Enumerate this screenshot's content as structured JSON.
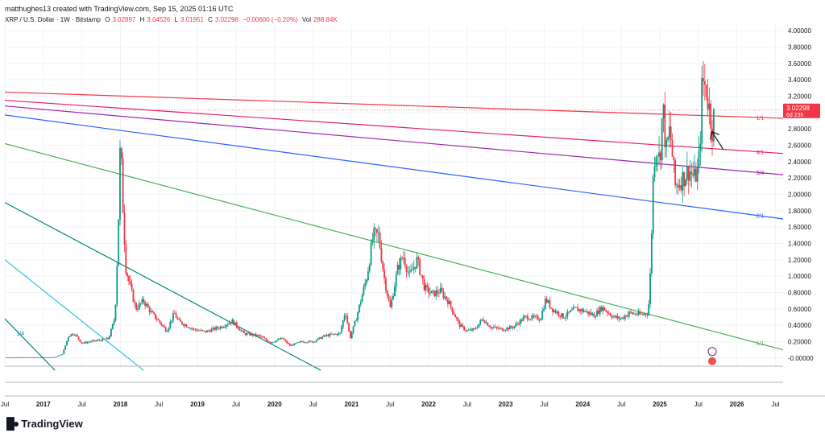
{
  "header": {
    "credit": "matthughes13 created with TradingView.com, Sep 15, 2025 01:16 UTC"
  },
  "legend": {
    "symbol": "XRP / U.S. Dollar · 1W · Bitstamp",
    "open_key": "O",
    "open": "3.02897",
    "high_key": "H",
    "high": "3.04526",
    "low_key": "L",
    "low": "3.01951",
    "close_key": "C",
    "close": "3.02298",
    "change": "−0.00600 (−0.20%)",
    "vol_key": "Vol",
    "vol": "288.84K"
  },
  "price_badge": {
    "price": "3.02298",
    "countdown": "6d 23h"
  },
  "branding": {
    "logo_text": "TradingView"
  },
  "colors": {
    "up": "#089981",
    "down": "#f23645",
    "red_line": "#f23645",
    "pink_line": "#e91e63",
    "purple_line": "#9c27b0",
    "blue_line": "#2962ff",
    "green_line": "#4caf50",
    "teal_line": "#00897b",
    "cyan_line": "#26c6da",
    "grid": "#f0f3fa",
    "axis_text": "#131722"
  },
  "chart_data": {
    "type": "candlestick",
    "title": "XRP / U.S. Dollar · 1W · Bitstamp",
    "y_ticks": [
      "4.00000",
      "3.80000",
      "3.60000",
      "3.40000",
      "3.20000",
      "3.00000",
      "2.80000",
      "2.60000",
      "2.40000",
      "2.20000",
      "2.00000",
      "1.80000",
      "1.60000",
      "1.40000",
      "1.20000",
      "1.00000",
      "0.80000",
      "0.60000",
      "0.40000",
      "0.20000",
      "-0.00000"
    ],
    "y_tick_values": [
      4.0,
      3.8,
      3.6,
      3.4,
      3.2,
      3.0,
      2.8,
      2.6,
      2.4,
      2.2,
      2.0,
      1.8,
      1.6,
      1.4,
      1.2,
      1.0,
      0.8,
      0.6,
      0.4,
      0.2,
      0.0
    ],
    "ylim": [
      -0.1,
      4.1
    ],
    "x_ticks": [
      {
        "label": "Jul",
        "t": 2016.5
      },
      {
        "label": "2017",
        "t": 2017.0
      },
      {
        "label": "Jul",
        "t": 2017.5
      },
      {
        "label": "2018",
        "t": 2018.0
      },
      {
        "label": "Jul",
        "t": 2018.5
      },
      {
        "label": "2019",
        "t": 2019.0
      },
      {
        "label": "Jul",
        "t": 2019.5
      },
      {
        "label": "2020",
        "t": 2020.0
      },
      {
        "label": "Jul",
        "t": 2020.5
      },
      {
        "label": "2021",
        "t": 2021.0
      },
      {
        "label": "Jul",
        "t": 2021.5
      },
      {
        "label": "2022",
        "t": 2022.0
      },
      {
        "label": "Jul",
        "t": 2022.5
      },
      {
        "label": "2023",
        "t": 2023.0
      },
      {
        "label": "Jul",
        "t": 2023.5
      },
      {
        "label": "2024",
        "t": 2024.0
      },
      {
        "label": "Jul",
        "t": 2024.5
      },
      {
        "label": "2025",
        "t": 2025.0
      },
      {
        "label": "Jul",
        "t": 2025.5
      },
      {
        "label": "2026",
        "t": 2026.0
      },
      {
        "label": "Jul",
        "t": 2026.5
      }
    ],
    "xlim": [
      2016.5,
      2026.6
    ],
    "close_path": [
      [
        2016.5,
        0.006
      ],
      [
        2016.9,
        0.007
      ],
      [
        2017.15,
        0.01
      ],
      [
        2017.25,
        0.05
      ],
      [
        2017.33,
        0.28
      ],
      [
        2017.4,
        0.3
      ],
      [
        2017.5,
        0.18
      ],
      [
        2017.6,
        0.2
      ],
      [
        2017.75,
        0.22
      ],
      [
        2017.85,
        0.24
      ],
      [
        2017.93,
        0.5
      ],
      [
        2017.97,
        1.5
      ],
      [
        2018.0,
        2.7
      ],
      [
        2018.03,
        1.9
      ],
      [
        2018.07,
        1.1
      ],
      [
        2018.12,
        0.9
      ],
      [
        2018.2,
        0.6
      ],
      [
        2018.3,
        0.7
      ],
      [
        2018.4,
        0.55
      ],
      [
        2018.5,
        0.45
      ],
      [
        2018.6,
        0.33
      ],
      [
        2018.7,
        0.55
      ],
      [
        2018.75,
        0.45
      ],
      [
        2018.85,
        0.4
      ],
      [
        2018.95,
        0.35
      ],
      [
        2019.1,
        0.32
      ],
      [
        2019.3,
        0.38
      ],
      [
        2019.45,
        0.45
      ],
      [
        2019.6,
        0.3
      ],
      [
        2019.8,
        0.27
      ],
      [
        2019.95,
        0.19
      ],
      [
        2020.1,
        0.24
      ],
      [
        2020.2,
        0.15
      ],
      [
        2020.35,
        0.2
      ],
      [
        2020.5,
        0.2
      ],
      [
        2020.65,
        0.27
      ],
      [
        2020.85,
        0.3
      ],
      [
        2020.92,
        0.58
      ],
      [
        2020.98,
        0.24
      ],
      [
        2021.05,
        0.45
      ],
      [
        2021.2,
        1.0
      ],
      [
        2021.28,
        1.5
      ],
      [
        2021.35,
        1.5
      ],
      [
        2021.42,
        1.0
      ],
      [
        2021.5,
        0.6
      ],
      [
        2021.6,
        1.1
      ],
      [
        2021.67,
        1.25
      ],
      [
        2021.75,
        1.0
      ],
      [
        2021.85,
        1.2
      ],
      [
        2021.95,
        0.85
      ],
      [
        2022.05,
        0.78
      ],
      [
        2022.15,
        0.82
      ],
      [
        2022.25,
        0.7
      ],
      [
        2022.4,
        0.4
      ],
      [
        2022.5,
        0.33
      ],
      [
        2022.6,
        0.35
      ],
      [
        2022.7,
        0.48
      ],
      [
        2022.8,
        0.38
      ],
      [
        2022.95,
        0.35
      ],
      [
        2023.1,
        0.38
      ],
      [
        2023.25,
        0.5
      ],
      [
        2023.45,
        0.48
      ],
      [
        2023.52,
        0.72
      ],
      [
        2023.6,
        0.6
      ],
      [
        2023.75,
        0.5
      ],
      [
        2023.9,
        0.6
      ],
      [
        2024.0,
        0.58
      ],
      [
        2024.15,
        0.52
      ],
      [
        2024.25,
        0.62
      ],
      [
        2024.4,
        0.5
      ],
      [
        2024.5,
        0.48
      ],
      [
        2024.6,
        0.55
      ],
      [
        2024.75,
        0.53
      ],
      [
        2024.85,
        0.55
      ],
      [
        2024.88,
        1.1
      ],
      [
        2024.92,
        2.4
      ],
      [
        2024.96,
        2.6
      ],
      [
        2025.0,
        2.4
      ],
      [
        2025.04,
        3.1
      ],
      [
        2025.08,
        2.5
      ],
      [
        2025.13,
        2.8
      ],
      [
        2025.2,
        2.1
      ],
      [
        2025.3,
        2.2
      ],
      [
        2025.38,
        2.3
      ],
      [
        2025.45,
        2.2
      ],
      [
        2025.5,
        2.3
      ],
      [
        2025.53,
        2.8
      ],
      [
        2025.55,
        3.4
      ],
      [
        2025.6,
        3.3
      ],
      [
        2025.65,
        3.0
      ],
      [
        2025.68,
        2.8
      ],
      [
        2025.71,
        3.03
      ]
    ],
    "candle_widths_note": "weekly candles rendered from close path",
    "trendlines": [
      {
        "color_key": "red_line",
        "from": [
          2016.5,
          3.25
        ],
        "to": [
          2026.6,
          2.93
        ],
        "label": "1/1"
      },
      {
        "color_key": "pink_line",
        "from": [
          2016.5,
          3.15
        ],
        "to": [
          2026.6,
          2.5
        ],
        "label": "4/1"
      },
      {
        "color_key": "purple_line",
        "from": [
          2016.5,
          3.08
        ],
        "to": [
          2026.6,
          2.24
        ],
        "label": "3/4"
      },
      {
        "color_key": "blue_line",
        "from": [
          2016.5,
          2.97
        ],
        "to": [
          2026.6,
          1.7
        ],
        "label": "2/1"
      },
      {
        "color_key": "green_line",
        "from": [
          2016.5,
          2.62
        ],
        "to": [
          2026.6,
          0.1
        ],
        "label": "1/1"
      },
      {
        "color_key": "teal_line",
        "from": [
          2016.5,
          1.9
        ],
        "to": [
          2020.6,
          -0.15
        ],
        "label": ""
      },
      {
        "color_key": "cyan_line",
        "from": [
          2016.5,
          1.2
        ],
        "to": [
          2018.3,
          -0.15
        ],
        "label": ""
      },
      {
        "color_key": "teal_line",
        "from": [
          2016.5,
          0.48
        ],
        "to": [
          2017.15,
          -0.15
        ],
        "label": "1/4"
      }
    ]
  }
}
